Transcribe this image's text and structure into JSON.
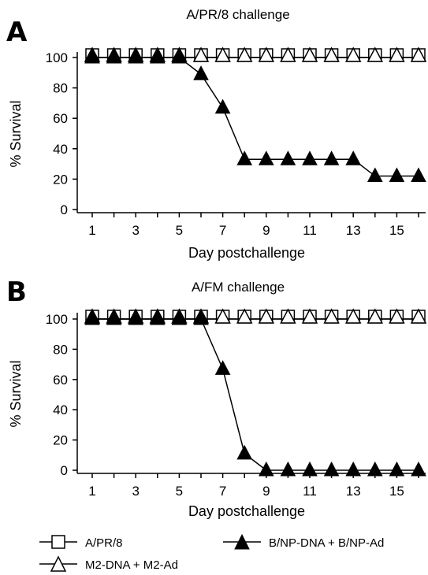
{
  "figure": {
    "legend": [
      {
        "label": "A/PR/8",
        "marker": "open-square"
      },
      {
        "label": "B/NP-DNA + B/NP-Ad",
        "marker": "filled-triangle"
      },
      {
        "label": "M2-DNA + M2-Ad",
        "marker": "open-triangle"
      }
    ]
  },
  "chart_data": [
    {
      "panel": "A",
      "type": "line",
      "title": "A/PR/8 challenge",
      "xlabel": "Day postchallenge",
      "ylabel": "% Survival",
      "xlim": [
        0.5,
        16.5
      ],
      "ylim": [
        0,
        100
      ],
      "xticks": [
        1,
        3,
        5,
        7,
        9,
        11,
        13,
        15
      ],
      "yticks": [
        0,
        20,
        40,
        60,
        80,
        100
      ],
      "x": [
        1,
        2,
        3,
        4,
        5,
        6,
        7,
        8,
        9,
        10,
        11,
        12,
        13,
        14,
        15,
        16
      ],
      "series": [
        {
          "name": "A/PR/8",
          "marker": "open-square",
          "values": [
            100,
            100,
            100,
            100,
            100,
            100,
            100,
            100,
            100,
            100,
            100,
            100,
            100,
            100,
            100,
            100
          ]
        },
        {
          "name": "M2-DNA + M2-Ad",
          "marker": "open-triangle",
          "values": [
            100,
            100,
            100,
            100,
            100,
            100,
            100,
            100,
            100,
            100,
            100,
            100,
            100,
            100,
            100,
            100
          ]
        },
        {
          "name": "B/NP-DNA + B/NP-Ad",
          "marker": "filled-triangle",
          "values": [
            100,
            100,
            100,
            100,
            100,
            89,
            67,
            33,
            33,
            33,
            33,
            33,
            33,
            22,
            22,
            22
          ]
        }
      ]
    },
    {
      "panel": "B",
      "type": "line",
      "title": "A/FM challenge",
      "xlabel": "Day postchallenge",
      "ylabel": "% Survival",
      "xlim": [
        0.5,
        16.5
      ],
      "ylim": [
        0,
        100
      ],
      "xticks": [
        1,
        3,
        5,
        7,
        9,
        11,
        13,
        15
      ],
      "yticks": [
        0,
        20,
        40,
        60,
        80,
        100
      ],
      "x": [
        1,
        2,
        3,
        4,
        5,
        6,
        7,
        8,
        9,
        10,
        11,
        12,
        13,
        14,
        15,
        16
      ],
      "series": [
        {
          "name": "A/PR/8",
          "marker": "open-square",
          "values": [
            100,
            100,
            100,
            100,
            100,
            100,
            100,
            100,
            100,
            100,
            100,
            100,
            100,
            100,
            100,
            100
          ]
        },
        {
          "name": "M2-DNA + M2-Ad",
          "marker": "open-triangle",
          "values": [
            100,
            100,
            100,
            100,
            100,
            100,
            100,
            100,
            100,
            100,
            100,
            100,
            100,
            100,
            100,
            100
          ]
        },
        {
          "name": "B/NP-DNA + B/NP-Ad",
          "marker": "filled-triangle",
          "values": [
            100,
            100,
            100,
            100,
            100,
            100,
            67,
            11,
            0,
            0,
            0,
            0,
            0,
            0,
            0,
            0
          ]
        }
      ]
    }
  ]
}
